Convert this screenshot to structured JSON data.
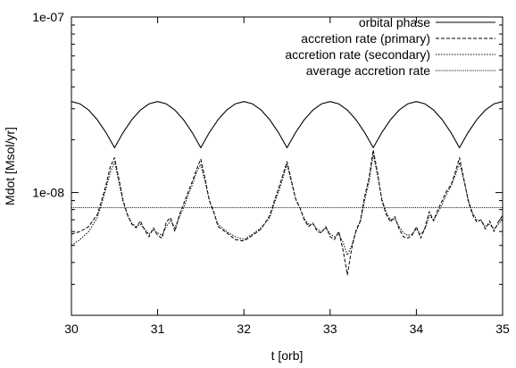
{
  "chart_data": {
    "type": "line",
    "xlabel": "t [orb]",
    "ylabel": "Mdot [Msol/yr]",
    "xlim": [
      30,
      35
    ],
    "ylim": [
      2e-09,
      1e-07
    ],
    "yscale": "log",
    "x_ticks": [
      30,
      31,
      32,
      33,
      34,
      35
    ],
    "x_tick_labels": [
      "30",
      "31",
      "32",
      "33",
      "34",
      "35"
    ],
    "y_ticks": [
      1e-08,
      1e-07
    ],
    "y_tick_labels": [
      "1e-08",
      "1e-07"
    ],
    "grid": false,
    "legend_position": "top-right",
    "series": [
      {
        "name": "orbital phase",
        "style": "solid",
        "color": "#000000",
        "x": [
          30.0,
          30.1,
          30.2,
          30.3,
          30.4,
          30.5,
          30.6,
          30.7,
          30.8,
          30.9,
          31.0,
          31.1,
          31.2,
          31.3,
          31.4,
          31.5,
          31.6,
          31.7,
          31.8,
          31.9,
          32.0,
          32.1,
          32.2,
          32.3,
          32.4,
          32.5,
          32.6,
          32.7,
          32.8,
          32.9,
          33.0,
          33.1,
          33.2,
          33.3,
          33.4,
          33.5,
          33.6,
          33.7,
          33.8,
          33.9,
          34.0,
          34.1,
          34.2,
          34.3,
          34.4,
          34.5,
          34.6,
          34.7,
          34.8,
          34.9,
          35.0
        ],
        "y": [
          3.3e-08,
          3.2e-08,
          2.95e-08,
          2.6e-08,
          2.2e-08,
          1.8e-08,
          2.2e-08,
          2.6e-08,
          2.95e-08,
          3.2e-08,
          3.3e-08,
          3.2e-08,
          2.95e-08,
          2.6e-08,
          2.2e-08,
          1.8e-08,
          2.2e-08,
          2.6e-08,
          2.95e-08,
          3.2e-08,
          3.3e-08,
          3.2e-08,
          2.95e-08,
          2.6e-08,
          2.2e-08,
          1.8e-08,
          2.2e-08,
          2.6e-08,
          2.95e-08,
          3.2e-08,
          3.3e-08,
          3.2e-08,
          2.95e-08,
          2.6e-08,
          2.2e-08,
          1.8e-08,
          2.2e-08,
          2.6e-08,
          2.95e-08,
          3.2e-08,
          3.3e-08,
          3.2e-08,
          2.95e-08,
          2.6e-08,
          2.2e-08,
          1.8e-08,
          2.2e-08,
          2.6e-08,
          2.95e-08,
          3.2e-08,
          3.3e-08
        ]
      },
      {
        "name": "accretion rate (primary)",
        "style": "dashed",
        "color": "#000000",
        "x": [
          30.0,
          30.1,
          30.2,
          30.3,
          30.35,
          30.4,
          30.45,
          30.5,
          30.55,
          30.6,
          30.65,
          30.7,
          30.75,
          30.8,
          30.85,
          30.9,
          30.95,
          31.0,
          31.05,
          31.1,
          31.15,
          31.2,
          31.25,
          31.3,
          31.35,
          31.4,
          31.45,
          31.5,
          31.55,
          31.6,
          31.65,
          31.7,
          31.8,
          31.9,
          32.0,
          32.1,
          32.2,
          32.3,
          32.35,
          32.4,
          32.45,
          32.5,
          32.55,
          32.6,
          32.65,
          32.7,
          32.75,
          32.8,
          32.85,
          32.9,
          32.95,
          33.0,
          33.05,
          33.1,
          33.15,
          33.2,
          33.25,
          33.3,
          33.35,
          33.4,
          33.45,
          33.5,
          33.55,
          33.6,
          33.65,
          33.7,
          33.75,
          33.8,
          33.85,
          33.9,
          33.95,
          34.0,
          34.05,
          34.1,
          34.15,
          34.2,
          34.25,
          34.3,
          34.35,
          34.4,
          34.45,
          34.5,
          34.55,
          34.6,
          34.65,
          34.7,
          34.75,
          34.8,
          34.85,
          34.9,
          34.95,
          35.0
        ],
        "y": [
          5.8e-09,
          6e-09,
          6.4e-09,
          7.5e-09,
          9e-09,
          1.1e-08,
          1.4e-08,
          1.58e-08,
          1.2e-08,
          9e-09,
          7.5e-09,
          6.6e-09,
          6.3e-09,
          6.9e-09,
          6.1e-09,
          5.6e-09,
          6.3e-09,
          5.7e-09,
          5.5e-09,
          6.8e-09,
          7.2e-09,
          6e-09,
          7.4e-09,
          8.6e-09,
          1e-08,
          1.15e-08,
          1.35e-08,
          1.55e-08,
          1.2e-08,
          9e-09,
          7.8e-09,
          6.4e-09,
          5.9e-09,
          5.4e-09,
          5.3e-09,
          5.7e-09,
          6.2e-09,
          7.4e-09,
          8.9e-09,
          1.05e-08,
          1.25e-08,
          1.5e-08,
          1.18e-08,
          9.2e-09,
          8.2e-09,
          7e-09,
          6.4e-09,
          6.7e-09,
          6e-09,
          5.9e-09,
          6.4e-09,
          5.6e-09,
          5.4e-09,
          6e-09,
          4.7e-09,
          3.4e-09,
          4.8e-09,
          6.1e-09,
          6.9e-09,
          9.5e-09,
          1.2e-08,
          1.75e-08,
          1.3e-08,
          9e-09,
          7.5e-09,
          6.8e-09,
          7.3e-09,
          6.2e-09,
          5.6e-09,
          5.5e-09,
          5.7e-09,
          6.4e-09,
          5.5e-09,
          6.3e-09,
          7.8e-09,
          6.9e-09,
          8e-09,
          9e-09,
          1.02e-08,
          1.1e-08,
          1.3e-08,
          1.58e-08,
          1.2e-08,
          9e-09,
          7.5e-09,
          6.8e-09,
          7e-09,
          6.2e-09,
          6.9e-09,
          6e-09,
          6.8e-09,
          7.4e-09
        ]
      },
      {
        "name": "accretion rate (secondary)",
        "style": "dotted",
        "color": "#000000",
        "x": [
          30.0,
          30.1,
          30.2,
          30.3,
          30.35,
          30.4,
          30.45,
          30.5,
          30.55,
          30.6,
          30.65,
          30.7,
          30.75,
          30.8,
          30.85,
          30.9,
          30.95,
          31.0,
          31.05,
          31.1,
          31.15,
          31.2,
          31.25,
          31.3,
          31.35,
          31.4,
          31.45,
          31.5,
          31.55,
          31.6,
          31.65,
          31.7,
          31.8,
          31.9,
          32.0,
          32.1,
          32.2,
          32.3,
          32.35,
          32.4,
          32.45,
          32.5,
          32.55,
          32.6,
          32.65,
          32.7,
          32.75,
          32.8,
          32.85,
          32.9,
          32.95,
          33.0,
          33.05,
          33.1,
          33.15,
          33.2,
          33.25,
          33.3,
          33.35,
          33.4,
          33.45,
          33.5,
          33.55,
          33.6,
          33.65,
          33.7,
          33.75,
          33.8,
          33.85,
          33.9,
          33.95,
          34.0,
          34.05,
          34.1,
          34.15,
          34.2,
          34.25,
          34.3,
          34.35,
          34.4,
          34.45,
          34.5,
          34.55,
          34.6,
          34.65,
          34.7,
          34.75,
          34.8,
          34.85,
          34.9,
          34.95,
          35.0
        ],
        "y": [
          5e-09,
          5.4e-09,
          6e-09,
          7.2e-09,
          8.6e-09,
          1.05e-08,
          1.3e-08,
          1.5e-08,
          1.15e-08,
          8.8e-09,
          7.4e-09,
          6.7e-09,
          6.4e-09,
          6.6e-09,
          6.2e-09,
          5.8e-09,
          6.1e-09,
          5.9e-09,
          5.7e-09,
          6.4e-09,
          6.9e-09,
          6.3e-09,
          7.2e-09,
          8.2e-09,
          9.6e-09,
          1.1e-08,
          1.3e-08,
          1.45e-08,
          1.15e-08,
          9e-09,
          7.7e-09,
          6.6e-09,
          6e-09,
          5.6e-09,
          5.4e-09,
          5.8e-09,
          6.3e-09,
          7.2e-09,
          8.6e-09,
          1e-08,
          1.2e-08,
          1.45e-08,
          1.15e-08,
          9.2e-09,
          8.1e-09,
          7.1e-09,
          6.6e-09,
          6.6e-09,
          6.2e-09,
          6e-09,
          6.3e-09,
          5.8e-09,
          5.6e-09,
          5.8e-09,
          5.2e-09,
          4.4e-09,
          5e-09,
          6e-09,
          6.8e-09,
          9e-09,
          1.15e-08,
          1.65e-08,
          1.25e-08,
          9.2e-09,
          7.7e-09,
          7e-09,
          7.1e-09,
          6.4e-09,
          5.9e-09,
          5.7e-09,
          5.8e-09,
          6.2e-09,
          5.8e-09,
          6.2e-09,
          7.4e-09,
          7e-09,
          7.7e-09,
          8.6e-09,
          9.8e-09,
          1.08e-08,
          1.25e-08,
          1.48e-08,
          1.18e-08,
          9.2e-09,
          7.7e-09,
          7e-09,
          6.9e-09,
          6.4e-09,
          6.6e-09,
          6.2e-09,
          6.6e-09,
          7e-09
        ]
      },
      {
        "name": "average accretion rate",
        "style": "dotted-fine",
        "color": "#000000",
        "x": [
          30,
          35
        ],
        "y": [
          8.2e-09,
          8.2e-09
        ]
      }
    ]
  }
}
